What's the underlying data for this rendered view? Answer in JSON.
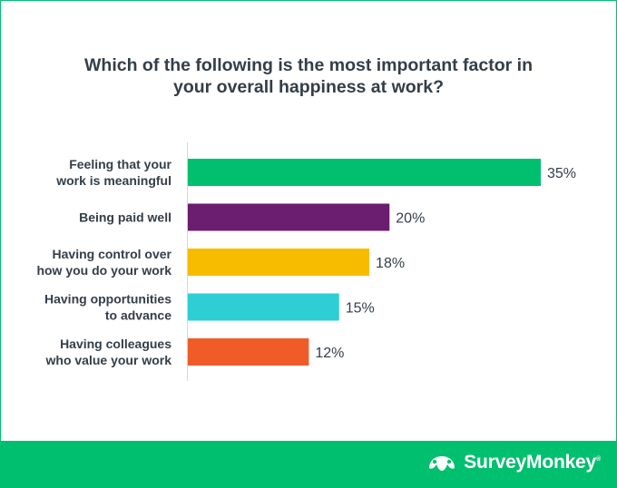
{
  "title_line1": "Which of the following is the most important factor in",
  "title_line2": "your overall happiness at work?",
  "brand": {
    "name": "SurveyMonkey",
    "trademark": "®",
    "logo_icon": "surveymonkey-logo-icon",
    "color": "#00bf6f"
  },
  "chart_data": {
    "type": "bar",
    "orientation": "horizontal",
    "title": "Which of the following is the most important factor in your overall happiness at work?",
    "categories": [
      [
        "Feeling that your",
        "work is meaningful"
      ],
      [
        "Being paid well"
      ],
      [
        "Having control over",
        "how you do your work"
      ],
      [
        "Having opportunities",
        "to advance"
      ],
      [
        "Having colleagues",
        "who value your work"
      ]
    ],
    "values": [
      35,
      20,
      18,
      15,
      12
    ],
    "value_labels": [
      "35%",
      "20%",
      "18%",
      "15%",
      "12%"
    ],
    "colors": [
      "#00bf6f",
      "#6b1d70",
      "#f7bc00",
      "#2dced4",
      "#f05c28"
    ],
    "unit": "%",
    "xlim": [
      0,
      35
    ],
    "grid": false,
    "legend": "none"
  }
}
